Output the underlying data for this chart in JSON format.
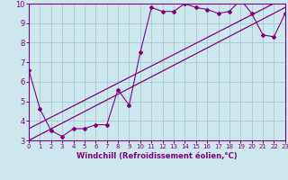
{
  "xlabel": "Windchill (Refroidissement éolien,°C)",
  "bg_color": "#cce8ec",
  "grid_color": "#aacdd4",
  "line_color": "#800080",
  "spine_color": "#800080",
  "x_min": 0,
  "x_max": 23,
  "y_min": 3,
  "y_max": 10,
  "data_line": {
    "x": [
      0,
      1,
      2,
      3,
      4,
      5,
      6,
      7,
      8,
      9,
      10,
      11,
      12,
      13,
      14,
      15,
      16,
      17,
      18,
      19,
      20,
      21,
      22,
      23
    ],
    "y": [
      6.6,
      4.6,
      3.5,
      3.2,
      3.6,
      3.6,
      3.8,
      3.8,
      5.6,
      4.8,
      7.5,
      9.8,
      9.6,
      9.6,
      10.0,
      9.8,
      9.7,
      9.5,
      9.6,
      10.2,
      9.5,
      8.4,
      8.3,
      9.5
    ]
  },
  "trend_line1": {
    "x": [
      0,
      23
    ],
    "y": [
      3.0,
      9.8
    ]
  },
  "trend_line2": {
    "x": [
      0,
      23
    ],
    "y": [
      3.6,
      10.3
    ]
  },
  "yticks": [
    3,
    4,
    5,
    6,
    7,
    8,
    9,
    10
  ],
  "xticks": [
    0,
    1,
    2,
    3,
    4,
    5,
    6,
    7,
    8,
    9,
    10,
    11,
    12,
    13,
    14,
    15,
    16,
    17,
    18,
    19,
    20,
    21,
    22,
    23
  ],
  "xlabel_fontsize": 6.0,
  "tick_fontsize_x": 5.0,
  "tick_fontsize_y": 6.0,
  "xlabel_fontweight": "bold"
}
